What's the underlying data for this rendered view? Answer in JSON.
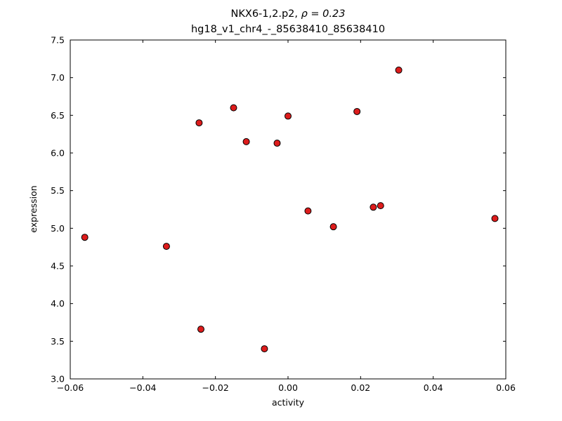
{
  "figure": {
    "background": "#ffffff",
    "title_line1_prefix": "NKX6-1,2.p2, ",
    "title_line1_rho": "ρ = 0.23",
    "title_line2": "hg18_v1_chr4_-_85638410_85638410"
  },
  "chart_data": {
    "type": "scatter",
    "title": "NKX6-1,2.p2, ρ = 0.23 | hg18_v1_chr4_-_85638410_85638410",
    "xlabel": "activity",
    "ylabel": "expression",
    "xlim": [
      -0.06,
      0.06
    ],
    "ylim": [
      3.0,
      7.5
    ],
    "xticks": {
      "values": [
        -0.06,
        -0.04,
        -0.02,
        0.0,
        0.02,
        0.04,
        0.06
      ],
      "labels": [
        "−0.06",
        "−0.04",
        "−0.02",
        "0.00",
        "0.02",
        "0.04",
        "0.06"
      ]
    },
    "yticks": {
      "values": [
        3.0,
        3.5,
        4.0,
        4.5,
        5.0,
        5.5,
        6.0,
        6.5,
        7.0,
        7.5
      ],
      "labels": [
        "3.0",
        "3.5",
        "4.0",
        "4.5",
        "5.0",
        "5.5",
        "6.0",
        "6.5",
        "7.0",
        "7.5"
      ]
    },
    "grid": false,
    "legend": null,
    "marker": {
      "shape": "circle",
      "radius": 4.5,
      "fill_color": "#dd1c1c",
      "edge_color": "#000000",
      "edge_width": 1
    },
    "points": [
      [
        -0.056,
        4.88
      ],
      [
        -0.0335,
        4.76
      ],
      [
        -0.0245,
        6.4
      ],
      [
        -0.024,
        3.66
      ],
      [
        -0.015,
        6.6
      ],
      [
        -0.0115,
        6.15
      ],
      [
        -0.0065,
        3.4
      ],
      [
        -0.003,
        6.13
      ],
      [
        0.0,
        6.49
      ],
      [
        0.0055,
        5.23
      ],
      [
        0.0125,
        5.02
      ],
      [
        0.019,
        6.55
      ],
      [
        0.0235,
        5.28
      ],
      [
        0.0255,
        5.3
      ],
      [
        0.0305,
        7.1
      ],
      [
        0.057,
        5.13
      ]
    ]
  }
}
